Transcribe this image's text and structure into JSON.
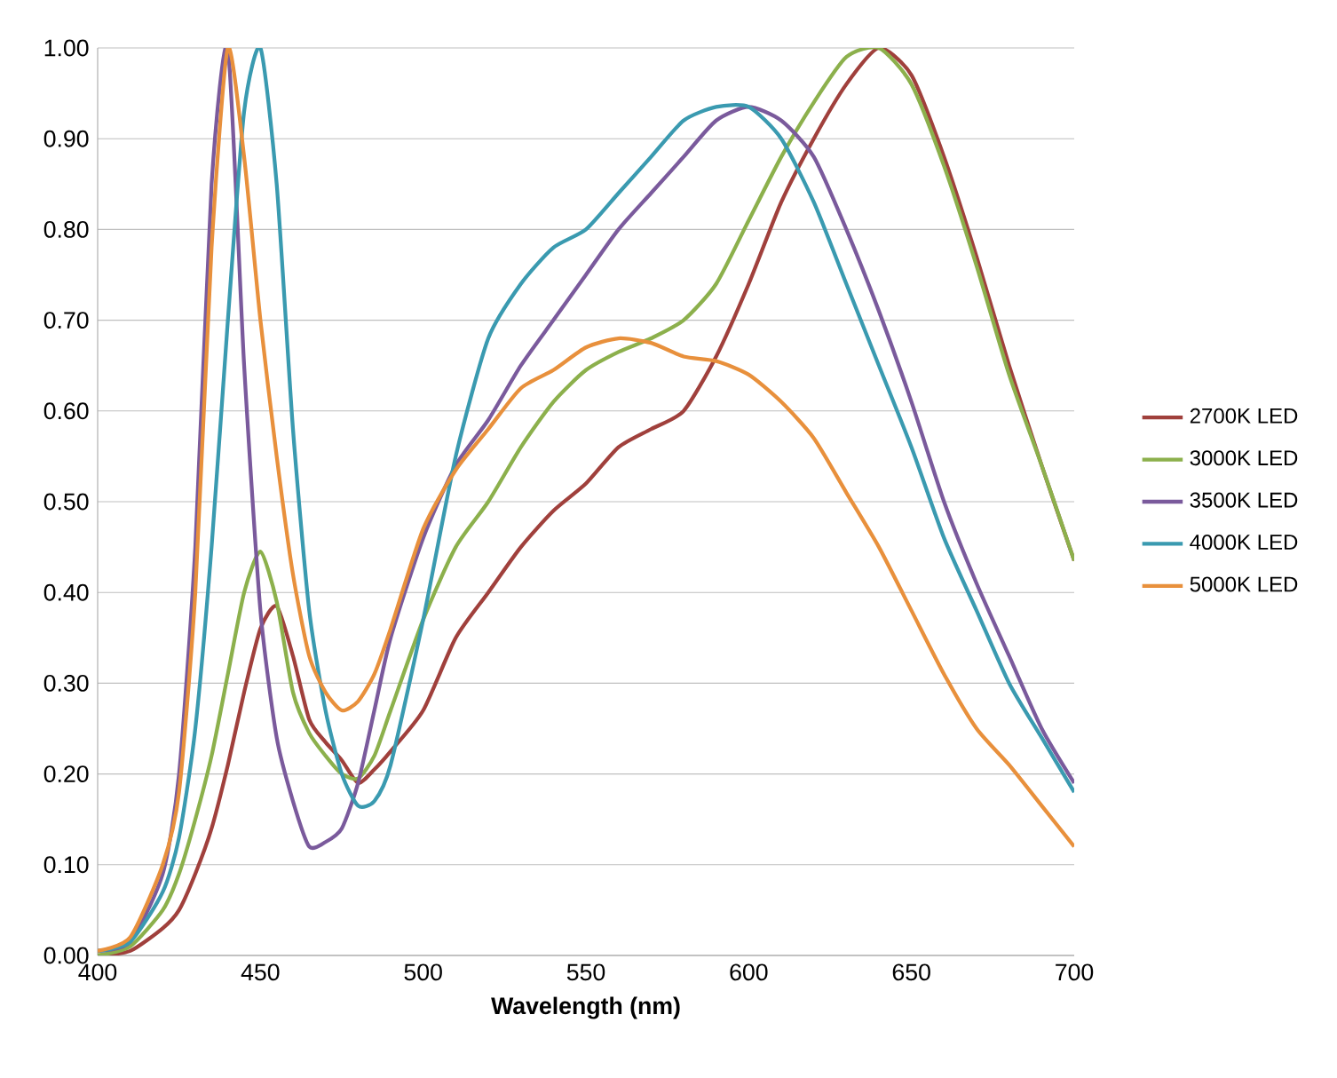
{
  "chart_data": {
    "type": "line",
    "xlabel": "Wavelength (nm)",
    "x": [
      400,
      410,
      420,
      425,
      430,
      435,
      440,
      445,
      450,
      455,
      460,
      465,
      470,
      475,
      480,
      485,
      490,
      500,
      510,
      520,
      530,
      540,
      550,
      560,
      570,
      580,
      590,
      600,
      610,
      620,
      630,
      640,
      650,
      660,
      670,
      680,
      690,
      700
    ],
    "series": [
      {
        "name": "2700K LED",
        "color": "#a0403c",
        "values": [
          0,
          0.005,
          0.03,
          0.05,
          0.09,
          0.14,
          0.21,
          0.29,
          0.36,
          0.385,
          0.33,
          0.26,
          0.235,
          0.215,
          0.19,
          0.205,
          0.225,
          0.27,
          0.35,
          0.4,
          0.45,
          0.49,
          0.52,
          0.56,
          0.58,
          0.6,
          0.66,
          0.74,
          0.83,
          0.9,
          0.96,
          1.0,
          0.97,
          0.88,
          0.77,
          0.65,
          0.54,
          0.435
        ]
      },
      {
        "name": "3000K LED",
        "color": "#8cb04c",
        "values": [
          0,
          0.01,
          0.05,
          0.09,
          0.15,
          0.22,
          0.31,
          0.4,
          0.445,
          0.39,
          0.29,
          0.245,
          0.22,
          0.2,
          0.195,
          0.22,
          0.27,
          0.37,
          0.45,
          0.5,
          0.56,
          0.61,
          0.645,
          0.665,
          0.68,
          0.7,
          0.74,
          0.81,
          0.88,
          0.94,
          0.99,
          1.0,
          0.96,
          0.87,
          0.76,
          0.64,
          0.54,
          0.435
        ]
      },
      {
        "name": "3500K LED",
        "color": "#7a5a9c",
        "values": [
          0.005,
          0.015,
          0.09,
          0.2,
          0.45,
          0.85,
          1.0,
          0.65,
          0.38,
          0.24,
          0.17,
          0.12,
          0.125,
          0.14,
          0.19,
          0.27,
          0.35,
          0.46,
          0.54,
          0.59,
          0.65,
          0.7,
          0.75,
          0.8,
          0.84,
          0.88,
          0.92,
          0.935,
          0.92,
          0.88,
          0.8,
          0.71,
          0.61,
          0.5,
          0.41,
          0.33,
          0.25,
          0.19
        ]
      },
      {
        "name": "4000K LED",
        "color": "#3a9ab0",
        "values": [
          0.005,
          0.015,
          0.07,
          0.13,
          0.25,
          0.45,
          0.7,
          0.93,
          1.0,
          0.85,
          0.58,
          0.38,
          0.27,
          0.2,
          0.165,
          0.17,
          0.21,
          0.37,
          0.55,
          0.68,
          0.74,
          0.78,
          0.8,
          0.84,
          0.88,
          0.92,
          0.935,
          0.935,
          0.9,
          0.83,
          0.74,
          0.65,
          0.56,
          0.46,
          0.38,
          0.3,
          0.24,
          0.18
        ]
      },
      {
        "name": "5000K LED",
        "color": "#e8903c",
        "values": [
          0.005,
          0.02,
          0.1,
          0.18,
          0.4,
          0.78,
          1.0,
          0.88,
          0.7,
          0.55,
          0.42,
          0.33,
          0.29,
          0.27,
          0.28,
          0.31,
          0.36,
          0.47,
          0.535,
          0.58,
          0.625,
          0.645,
          0.67,
          0.68,
          0.675,
          0.66,
          0.655,
          0.64,
          0.61,
          0.57,
          0.51,
          0.45,
          0.38,
          0.31,
          0.25,
          0.21,
          0.165,
          0.12
        ]
      }
    ],
    "xlim": [
      400,
      700
    ],
    "xticks": [
      400,
      450,
      500,
      550,
      600,
      650,
      700
    ],
    "ylim": [
      0,
      1
    ],
    "yticks": [
      {
        "value": 0,
        "label": "0.00"
      },
      {
        "value": 0.1,
        "label": "0.10"
      },
      {
        "value": 0.2,
        "label": "0.20"
      },
      {
        "value": 0.3,
        "label": "0.30"
      },
      {
        "value": 0.4,
        "label": "0.40"
      },
      {
        "value": 0.5,
        "label": "0.50"
      },
      {
        "value": 0.6,
        "label": "0.60"
      },
      {
        "value": 0.7,
        "label": "0.70"
      },
      {
        "value": 0.8,
        "label": "0.80"
      },
      {
        "value": 0.9,
        "label": "0.90"
      },
      {
        "value": 1,
        "label": "1.00"
      }
    ],
    "grid": "y",
    "legend": "right",
    "marker": "none",
    "line_style": "solid"
  }
}
